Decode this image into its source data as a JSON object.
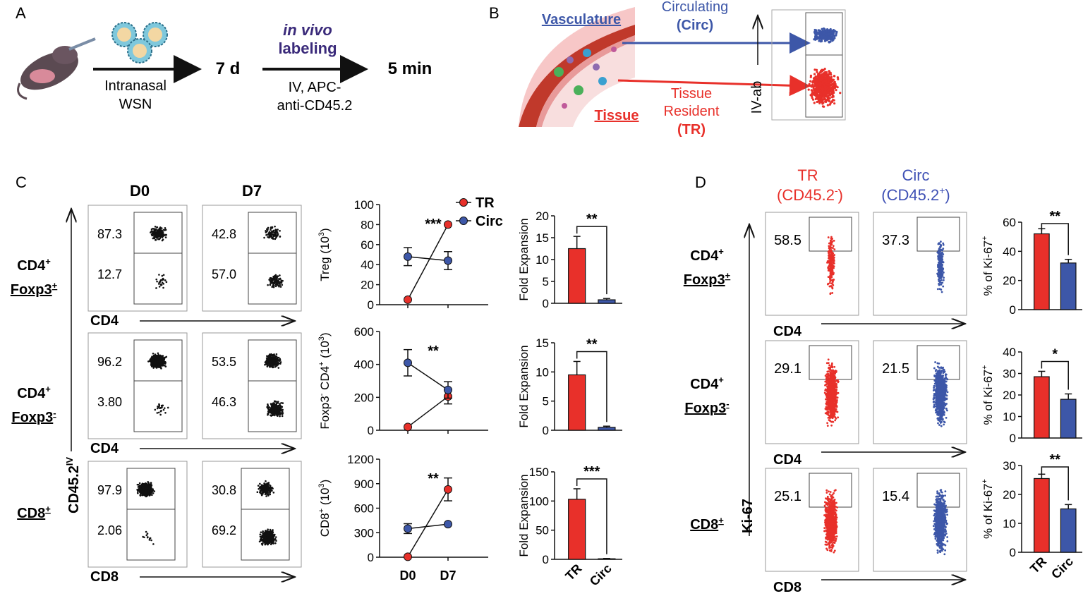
{
  "panel_letters": {
    "a": "A",
    "b": "B",
    "c": "C",
    "d": "D"
  },
  "panelA": {
    "step1": "Intranasal",
    "step1b": "WSN",
    "time1": "7 d",
    "label_italic1": "in vivo",
    "label_bold2": "labeling",
    "step2": "IV, APC-",
    "step2b": "anti-CD45.2",
    "time2": "5 min"
  },
  "panelB": {
    "vasculature": "Vasculature",
    "tissue": "Tissue",
    "circ1": "Circulating",
    "circ2": "(Circ)",
    "tr1": "Tissue",
    "tr2": "Resident",
    "tr3": "(TR)",
    "yaxis": "IV-ab"
  },
  "panelC": {
    "col_d0": "D0",
    "col_d7": "D7",
    "rows": [
      {
        "l1": "CD4",
        "sup": "+",
        "l2": "Foxp3",
        "sup2": "+",
        "xlabel": "CD4",
        "d0_top": "87.3",
        "d0_bot": "12.7",
        "d7_top": "42.8",
        "d7_bot": "57.0"
      },
      {
        "l1": "CD4",
        "sup": "+",
        "l2": "Foxp3",
        "sup2": "-",
        "xlabel": "CD4",
        "d0_top": "96.2",
        "d0_bot": "3.80",
        "d7_top": "53.5",
        "d7_bot": "46.3"
      },
      {
        "l1": "CD8",
        "sup": "+",
        "l2": "",
        "sup2": "",
        "xlabel": "CD8",
        "d0_top": "97.9",
        "d0_bot": "2.06",
        "d7_top": "30.8",
        "d7_bot": "69.2"
      }
    ],
    "yaxis_label": "CD45.2",
    "yaxis_sup": "IV"
  },
  "panelD": {
    "tr1": "TR",
    "tr2": "(CD45.2",
    "tr2_sup": "-",
    "tr2_end": ")",
    "circ1": "Circ",
    "circ2": "(CD45.2",
    "circ2_sup": "+",
    "circ2_end": ")",
    "rows": [
      {
        "l1": "CD4",
        "sup": "+",
        "l2": "Foxp3",
        "sup2": "+",
        "xlabel": "CD4",
        "tr_val": "58.5",
        "circ_val": "37.3"
      },
      {
        "l1": "CD4",
        "sup": "+",
        "l2": "Foxp3",
        "sup2": "-",
        "xlabel": "CD4",
        "tr_val": "29.1",
        "circ_val": "21.5"
      },
      {
        "l1": "CD8",
        "sup": "+",
        "l2": "",
        "sup2": "",
        "xlabel": "CD8",
        "tr_val": "25.1",
        "circ_val": "15.4"
      }
    ],
    "yaxis_label": "Ki-67"
  },
  "colors": {
    "tr": "#e8302a",
    "circ": "#3d57a8",
    "circ_text": "#3f51b5"
  },
  "chart_data": [
    {
      "type": "line",
      "id": "treg-line",
      "title": "",
      "ylabel": "Treg (10",
      "ylabel_sup": "3",
      "ylabel_end": ")",
      "categories": [
        "D0",
        "D7"
      ],
      "ylim": [
        0,
        100
      ],
      "yticks": [
        0,
        20,
        40,
        60,
        80,
        100
      ],
      "series": [
        {
          "name": "TR",
          "values": [
            5,
            80
          ],
          "err": [
            0,
            0
          ]
        },
        {
          "name": "Circ",
          "values": [
            48,
            44
          ],
          "err": [
            9,
            9
          ]
        }
      ],
      "annotation": "***",
      "legend": [
        "TR",
        "Circ"
      ]
    },
    {
      "type": "line",
      "id": "foxp3neg-line",
      "ylabel": "Foxp3",
      "ylabel_sup": "-",
      "ylabel_mid": " CD4",
      "ylabel_sup2": "+",
      "ylabel_end": " (10",
      "ylabel_sup3": "3",
      "ylabel_end2": ")",
      "categories": [
        "D0",
        "D7"
      ],
      "ylim": [
        0,
        600
      ],
      "yticks": [
        0,
        200,
        400,
        600
      ],
      "series": [
        {
          "name": "TR",
          "values": [
            20,
            205
          ],
          "err": [
            0,
            45
          ]
        },
        {
          "name": "Circ",
          "values": [
            410,
            245
          ],
          "err": [
            80,
            50
          ]
        }
      ],
      "annotation": "**"
    },
    {
      "type": "line",
      "id": "cd8-line",
      "ylabel": "CD8",
      "ylabel_sup": "+",
      "ylabel_end": " (10",
      "ylabel_sup3": "3",
      "ylabel_end2": ")",
      "categories": [
        "D0",
        "D7"
      ],
      "ylim": [
        0,
        1200
      ],
      "yticks": [
        0,
        300,
        600,
        900,
        1200
      ],
      "series": [
        {
          "name": "TR",
          "values": [
            5,
            830
          ],
          "err": [
            0,
            140
          ]
        },
        {
          "name": "Circ",
          "values": [
            350,
            405
          ],
          "err": [
            60,
            0
          ]
        }
      ],
      "annotation": "**"
    },
    {
      "type": "bar",
      "id": "treg-fold",
      "ylabel": "Fold Expansion",
      "categories": [
        "TR",
        "Circ"
      ],
      "values": [
        12.5,
        0.8
      ],
      "err": [
        2.8,
        0.3
      ],
      "ylim": [
        0,
        20
      ],
      "yticks": [
        0,
        5,
        10,
        15,
        20
      ],
      "annotation": "**"
    },
    {
      "type": "bar",
      "id": "foxp3neg-fold",
      "ylabel": "Fold Expansion",
      "categories": [
        "TR",
        "Circ"
      ],
      "values": [
        9.5,
        0.5
      ],
      "err": [
        2.3,
        0.2
      ],
      "ylim": [
        0,
        15
      ],
      "yticks": [
        0,
        5,
        10,
        15
      ],
      "annotation": "**"
    },
    {
      "type": "bar",
      "id": "cd8-fold",
      "ylabel": "Fold Expansion",
      "categories": [
        "TR",
        "Circ"
      ],
      "values": [
        103,
        1
      ],
      "err": [
        18,
        0.5
      ],
      "ylim": [
        0,
        150
      ],
      "yticks": [
        0,
        50,
        100,
        150
      ],
      "annotation": "***"
    },
    {
      "type": "bar",
      "id": "ki67-treg",
      "ylabel": "% of Ki-67",
      "ylabel_sup": "+",
      "categories": [
        "TR",
        "Circ"
      ],
      "values": [
        52,
        32
      ],
      "err": [
        3.5,
        2.5
      ],
      "ylim": [
        0,
        60
      ],
      "yticks": [
        0,
        20,
        40,
        60
      ],
      "annotation": "**"
    },
    {
      "type": "bar",
      "id": "ki67-foxp3neg",
      "ylabel": "% of Ki-67",
      "ylabel_sup": "+",
      "categories": [
        "TR",
        "Circ"
      ],
      "values": [
        28.5,
        18
      ],
      "err": [
        2.5,
        2.5
      ],
      "ylim": [
        0,
        40
      ],
      "yticks": [
        0,
        10,
        20,
        30,
        40
      ],
      "annotation": "*"
    },
    {
      "type": "bar",
      "id": "ki67-cd8",
      "ylabel": "% of Ki-67",
      "ylabel_sup": "+",
      "categories": [
        "TR",
        "Circ"
      ],
      "values": [
        25.5,
        15
      ],
      "err": [
        1.5,
        1.5
      ],
      "ylim": [
        0,
        30
      ],
      "yticks": [
        0,
        10,
        20,
        30
      ],
      "annotation": "**"
    }
  ]
}
